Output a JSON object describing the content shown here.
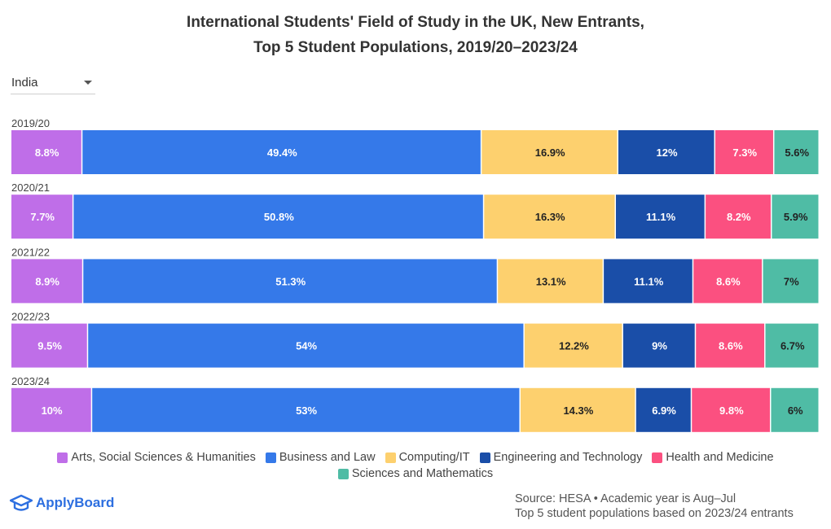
{
  "title": {
    "line1": "International Students' Field of Study in the UK, New Entrants,",
    "line2": "Top 5 Student Populations, 2019/20–2023/24"
  },
  "selector": {
    "value": "India"
  },
  "colors": {
    "Arts, Social Sciences & Humanities": "#bf6ee8",
    "Business and Law": "#3579e9",
    "Computing/IT": "#fdd06e",
    "Engineering and Technology": "#1a4ea8",
    "Health and Medicine": "#fb5080",
    "Sciences and Mathematics": "#4fbca5"
  },
  "label_colors": {
    "Arts, Social Sciences & Humanities": "#ffffff",
    "Business and Law": "#ffffff",
    "Computing/IT": "#222222",
    "Engineering and Technology": "#ffffff",
    "Health and Medicine": "#ffffff",
    "Sciences and Mathematics": "#222222"
  },
  "chart_data": {
    "type": "bar",
    "orientation": "horizontal",
    "stacked": true,
    "title": "International Students' Field of Study in the UK, New Entrants, Top 5 Student Populations, 2019/20–2023/24",
    "categories": [
      "2019/20",
      "2020/21",
      "2021/22",
      "2022/23",
      "2023/24"
    ],
    "series": [
      {
        "name": "Arts, Social Sciences & Humanities",
        "values": [
          8.8,
          7.7,
          8.9,
          9.5,
          10
        ],
        "labels": [
          "8.8%",
          "7.7%",
          "8.9%",
          "9.5%",
          "10%"
        ]
      },
      {
        "name": "Business and Law",
        "values": [
          49.4,
          50.8,
          51.3,
          54,
          53
        ],
        "labels": [
          "49.4%",
          "50.8%",
          "51.3%",
          "54%",
          "53%"
        ]
      },
      {
        "name": "Computing/IT",
        "values": [
          16.9,
          16.3,
          13.1,
          12.2,
          14.3
        ],
        "labels": [
          "16.9%",
          "16.3%",
          "13.1%",
          "12.2%",
          "14.3%"
        ]
      },
      {
        "name": "Engineering and Technology",
        "values": [
          12,
          11.1,
          11.1,
          9,
          6.9
        ],
        "labels": [
          "12%",
          "11.1%",
          "11.1%",
          "9%",
          "6.9%"
        ]
      },
      {
        "name": "Health and Medicine",
        "values": [
          7.3,
          8.2,
          8.6,
          8.6,
          9.8
        ],
        "labels": [
          "7.3%",
          "8.2%",
          "8.6%",
          "8.6%",
          "9.8%"
        ]
      },
      {
        "name": "Sciences and Mathematics",
        "values": [
          5.6,
          5.9,
          7,
          6.7,
          6
        ],
        "labels": [
          "5.6%",
          "5.9%",
          "7%",
          "6.7%",
          "6%"
        ]
      }
    ],
    "xlim": [
      0,
      100
    ],
    "legend": "bottom"
  },
  "footer": {
    "brand": "ApplyBoard",
    "source_line1": "Source: HESA • Academic year is Aug–Jul",
    "source_line2": "Top 5 student populations based on 2023/24 entrants"
  }
}
